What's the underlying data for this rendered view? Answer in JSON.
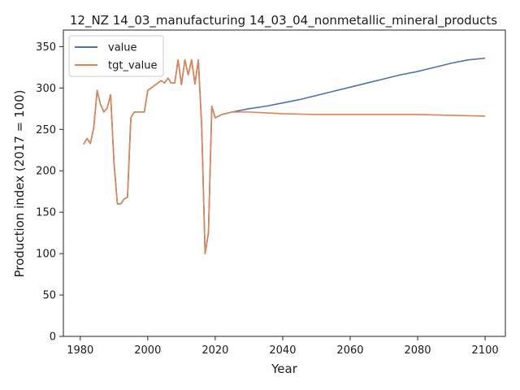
{
  "chart_data": {
    "type": "line",
    "title": "12_NZ 14_03_manufacturing 14_03_04_nonmetallic_mineral_products",
    "xlabel": "Year",
    "ylabel": "Production index (2017 = 100)",
    "xlim": [
      1975,
      2106
    ],
    "ylim": [
      0,
      370
    ],
    "xticks": [
      1980,
      2000,
      2020,
      2040,
      2060,
      2080,
      2100
    ],
    "yticks": [
      0,
      50,
      100,
      150,
      200,
      250,
      300,
      350
    ],
    "grid": false,
    "legend": "upper-left",
    "series": [
      {
        "name": "value",
        "color": "#4c72b0",
        "points": [
          [
            1981,
            232
          ],
          [
            1982,
            239
          ],
          [
            1983,
            233
          ],
          [
            1984,
            252
          ],
          [
            1985,
            297
          ],
          [
            1986,
            280
          ],
          [
            1987,
            271
          ],
          [
            1988,
            276
          ],
          [
            1989,
            292
          ],
          [
            1990,
            210
          ],
          [
            1991,
            160
          ],
          [
            1992,
            160
          ],
          [
            1993,
            166
          ],
          [
            1994,
            168
          ],
          [
            1995,
            264
          ],
          [
            1996,
            271
          ],
          [
            1997,
            271
          ],
          [
            1998,
            271
          ],
          [
            1999,
            271
          ],
          [
            2000,
            297
          ],
          [
            2001,
            300
          ],
          [
            2002,
            303
          ],
          [
            2003,
            306
          ],
          [
            2004,
            309
          ],
          [
            2005,
            306
          ],
          [
            2006,
            312
          ],
          [
            2007,
            306
          ],
          [
            2008,
            306
          ],
          [
            2009,
            334
          ],
          [
            2010,
            304
          ],
          [
            2011,
            334
          ],
          [
            2012,
            316
          ],
          [
            2013,
            334
          ],
          [
            2014,
            305
          ],
          [
            2015,
            334
          ],
          [
            2016,
            253
          ],
          [
            2017,
            100
          ],
          [
            2018,
            125
          ],
          [
            2019,
            278
          ],
          [
            2020,
            264
          ],
          [
            2022,
            268
          ],
          [
            2025,
            271
          ],
          [
            2030,
            275
          ],
          [
            2035,
            278
          ],
          [
            2040,
            282
          ],
          [
            2045,
            286
          ],
          [
            2050,
            291
          ],
          [
            2055,
            296
          ],
          [
            2060,
            301
          ],
          [
            2065,
            306
          ],
          [
            2070,
            311
          ],
          [
            2075,
            316
          ],
          [
            2080,
            320
          ],
          [
            2085,
            325
          ],
          [
            2090,
            330
          ],
          [
            2095,
            334
          ],
          [
            2100,
            336
          ]
        ]
      },
      {
        "name": "tgt_value",
        "color": "#dd8452",
        "points": [
          [
            1981,
            232
          ],
          [
            1982,
            239
          ],
          [
            1983,
            233
          ],
          [
            1984,
            252
          ],
          [
            1985,
            297
          ],
          [
            1986,
            280
          ],
          [
            1987,
            271
          ],
          [
            1988,
            276
          ],
          [
            1989,
            292
          ],
          [
            1990,
            210
          ],
          [
            1991,
            160
          ],
          [
            1992,
            160
          ],
          [
            1993,
            166
          ],
          [
            1994,
            168
          ],
          [
            1995,
            264
          ],
          [
            1996,
            271
          ],
          [
            1997,
            271
          ],
          [
            1998,
            271
          ],
          [
            1999,
            271
          ],
          [
            2000,
            297
          ],
          [
            2001,
            300
          ],
          [
            2002,
            303
          ],
          [
            2003,
            306
          ],
          [
            2004,
            309
          ],
          [
            2005,
            306
          ],
          [
            2006,
            312
          ],
          [
            2007,
            306
          ],
          [
            2008,
            306
          ],
          [
            2009,
            334
          ],
          [
            2010,
            304
          ],
          [
            2011,
            334
          ],
          [
            2012,
            316
          ],
          [
            2013,
            334
          ],
          [
            2014,
            305
          ],
          [
            2015,
            334
          ],
          [
            2016,
            253
          ],
          [
            2017,
            100
          ],
          [
            2018,
            125
          ],
          [
            2019,
            278
          ],
          [
            2020,
            264
          ],
          [
            2022,
            268
          ],
          [
            2025,
            271
          ],
          [
            2030,
            271
          ],
          [
            2035,
            270
          ],
          [
            2040,
            269
          ],
          [
            2050,
            268
          ],
          [
            2060,
            268
          ],
          [
            2070,
            268
          ],
          [
            2080,
            268
          ],
          [
            2090,
            267
          ],
          [
            2100,
            266
          ]
        ]
      }
    ]
  }
}
